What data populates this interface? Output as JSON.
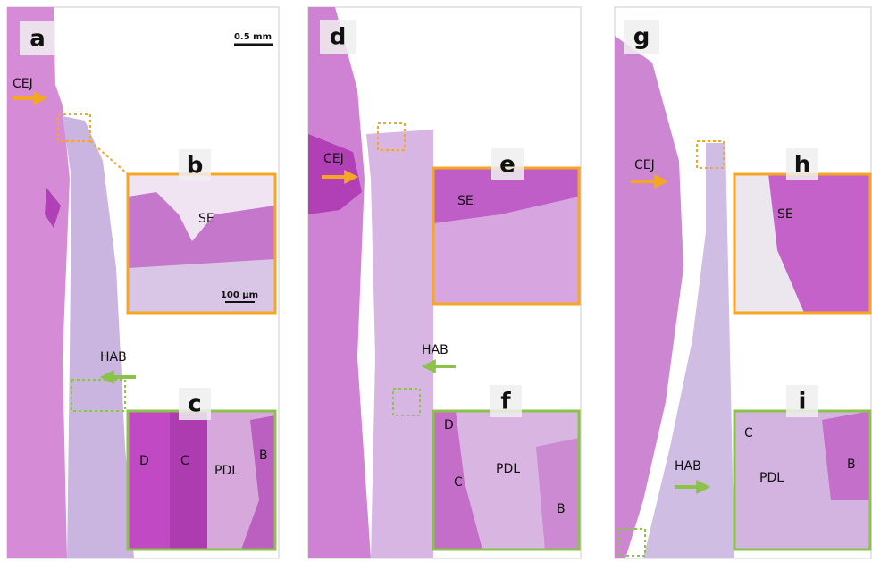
{
  "panels": [
    {
      "label": "a",
      "scale_bar": "0.5 mm",
      "labels": [
        "CEJ",
        "HAB"
      ]
    },
    {
      "label": "b",
      "scale_bar": "100 µm",
      "labels": [
        "SE"
      ]
    },
    {
      "label": "c",
      "labels": [
        "D",
        "C",
        "PDL",
        "B"
      ]
    },
    {
      "label": "d",
      "labels": [
        "CEJ",
        "HAB"
      ]
    },
    {
      "label": "e",
      "labels": [
        "SE"
      ]
    },
    {
      "label": "f",
      "labels": [
        "D",
        "C",
        "PDL",
        "B"
      ]
    },
    {
      "label": "g",
      "labels": [
        "CEJ",
        "HAB"
      ]
    },
    {
      "label": "h",
      "labels": [
        "SE"
      ]
    },
    {
      "label": "i",
      "labels": [
        "C",
        "PDL",
        "B"
      ]
    }
  ]
}
